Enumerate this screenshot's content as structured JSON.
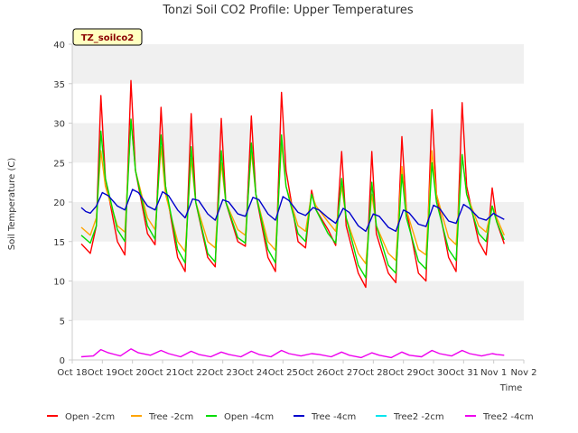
{
  "chart_data": {
    "type": "line",
    "title": "Tonzi Soil CO2 Profile: Upper Temperatures",
    "xlabel": "Time",
    "ylabel": "Soil Temperature (C)",
    "badge": "TZ_soilco2",
    "ylim": [
      0,
      40
    ],
    "yticks": [
      0,
      5,
      10,
      15,
      20,
      25,
      30,
      35,
      40
    ],
    "xlim": [
      18,
      33
    ],
    "xticks": [
      {
        "v": 18,
        "label": "Oct 18"
      },
      {
        "v": 19,
        "label": "Oct 19"
      },
      {
        "v": 20,
        "label": "Oct 20"
      },
      {
        "v": 21,
        "label": "Oct 21"
      },
      {
        "v": 22,
        "label": "Oct 22"
      },
      {
        "v": 23,
        "label": "Oct 23"
      },
      {
        "v": 24,
        "label": "Oct 24"
      },
      {
        "v": 25,
        "label": "Oct 25"
      },
      {
        "v": 26,
        "label": "Oct 26"
      },
      {
        "v": 27,
        "label": "Oct 27"
      },
      {
        "v": 28,
        "label": "Oct 28"
      },
      {
        "v": 29,
        "label": "Oct 29"
      },
      {
        "v": 30,
        "label": "Oct 30"
      },
      {
        "v": 31,
        "label": "Oct 31"
      },
      {
        "v": 32,
        "label": "Nov 1"
      },
      {
        "v": 33,
        "label": "Nov 2"
      }
    ],
    "grid": "horizontal bands",
    "legend_position": "bottom",
    "series": [
      {
        "name": "Open -2cm",
        "color": "#ff0000",
        "points": [
          [
            18.3,
            14.7
          ],
          [
            18.6,
            13.5
          ],
          [
            18.8,
            17.0
          ],
          [
            18.95,
            33.5
          ],
          [
            19.1,
            23.0
          ],
          [
            19.5,
            15.0
          ],
          [
            19.75,
            13.3
          ],
          [
            19.95,
            35.4
          ],
          [
            20.1,
            24.0
          ],
          [
            20.5,
            16.0
          ],
          [
            20.75,
            14.6
          ],
          [
            20.95,
            32.0
          ],
          [
            21.1,
            22.0
          ],
          [
            21.5,
            13.0
          ],
          [
            21.75,
            11.2
          ],
          [
            21.95,
            31.2
          ],
          [
            22.1,
            20.0
          ],
          [
            22.5,
            13.0
          ],
          [
            22.75,
            11.8
          ],
          [
            22.95,
            30.6
          ],
          [
            23.1,
            20.0
          ],
          [
            23.5,
            15.0
          ],
          [
            23.75,
            14.4
          ],
          [
            23.95,
            30.9
          ],
          [
            24.1,
            21.0
          ],
          [
            24.5,
            13.0
          ],
          [
            24.75,
            11.2
          ],
          [
            24.95,
            33.9
          ],
          [
            25.1,
            24.0
          ],
          [
            25.5,
            15.0
          ],
          [
            25.75,
            14.2
          ],
          [
            25.95,
            21.5
          ],
          [
            26.1,
            19.0
          ],
          [
            26.5,
            16.5
          ],
          [
            26.75,
            14.5
          ],
          [
            26.95,
            26.4
          ],
          [
            27.1,
            17.0
          ],
          [
            27.5,
            11.0
          ],
          [
            27.75,
            9.2
          ],
          [
            27.95,
            26.4
          ],
          [
            28.1,
            16.0
          ],
          [
            28.5,
            11.0
          ],
          [
            28.75,
            9.8
          ],
          [
            28.95,
            28.3
          ],
          [
            29.1,
            19.0
          ],
          [
            29.5,
            11.0
          ],
          [
            29.75,
            10.0
          ],
          [
            29.95,
            31.7
          ],
          [
            30.1,
            21.0
          ],
          [
            30.5,
            13.0
          ],
          [
            30.75,
            11.2
          ],
          [
            30.95,
            32.6
          ],
          [
            31.1,
            22.0
          ],
          [
            31.5,
            15.0
          ],
          [
            31.75,
            13.3
          ],
          [
            31.95,
            21.8
          ],
          [
            32.1,
            17.5
          ],
          [
            32.35,
            14.7
          ]
        ]
      },
      {
        "name": "Tree -2cm",
        "color": "#ffa500",
        "points": [
          [
            18.3,
            16.8
          ],
          [
            18.6,
            15.8
          ],
          [
            18.8,
            18.0
          ],
          [
            18.95,
            26.5
          ],
          [
            19.1,
            22.0
          ],
          [
            19.5,
            17.0
          ],
          [
            19.75,
            16.2
          ],
          [
            19.95,
            30.5
          ],
          [
            20.1,
            24.0
          ],
          [
            20.5,
            18.0
          ],
          [
            20.75,
            16.5
          ],
          [
            20.95,
            27.0
          ],
          [
            21.1,
            21.0
          ],
          [
            21.5,
            15.0
          ],
          [
            21.75,
            13.7
          ],
          [
            21.95,
            25.5
          ],
          [
            22.1,
            20.0
          ],
          [
            22.5,
            15.0
          ],
          [
            22.75,
            14.2
          ],
          [
            22.95,
            25.0
          ],
          [
            23.1,
            20.0
          ],
          [
            23.5,
            16.5
          ],
          [
            23.75,
            15.8
          ],
          [
            23.95,
            26.5
          ],
          [
            24.1,
            21.0
          ],
          [
            24.5,
            15.0
          ],
          [
            24.75,
            13.9
          ],
          [
            24.95,
            27.5
          ],
          [
            25.1,
            22.0
          ],
          [
            25.5,
            17.0
          ],
          [
            25.75,
            16.3
          ],
          [
            25.95,
            21.0
          ],
          [
            26.1,
            19.5
          ],
          [
            26.5,
            17.5
          ],
          [
            26.75,
            16.3
          ],
          [
            26.95,
            22.0
          ],
          [
            27.1,
            18.0
          ],
          [
            27.5,
            13.5
          ],
          [
            27.75,
            12.2
          ],
          [
            27.95,
            21.0
          ],
          [
            28.1,
            17.0
          ],
          [
            28.5,
            13.5
          ],
          [
            28.75,
            12.6
          ],
          [
            28.95,
            24.5
          ],
          [
            29.1,
            19.0
          ],
          [
            29.5,
            14.0
          ],
          [
            29.75,
            13.3
          ],
          [
            29.95,
            26.5
          ],
          [
            30.1,
            21.0
          ],
          [
            30.5,
            15.5
          ],
          [
            30.75,
            14.6
          ],
          [
            30.95,
            26.0
          ],
          [
            31.1,
            21.0
          ],
          [
            31.5,
            17.0
          ],
          [
            31.75,
            16.2
          ],
          [
            31.95,
            19.5
          ],
          [
            32.1,
            18.0
          ],
          [
            32.35,
            15.8
          ]
        ]
      },
      {
        "name": "Open -4cm",
        "color": "#00dd00",
        "points": [
          [
            18.3,
            15.8
          ],
          [
            18.6,
            14.8
          ],
          [
            18.8,
            17.0
          ],
          [
            18.95,
            29.0
          ],
          [
            19.1,
            23.0
          ],
          [
            19.5,
            16.5
          ],
          [
            19.75,
            15.0
          ],
          [
            19.95,
            30.5
          ],
          [
            20.1,
            24.0
          ],
          [
            20.5,
            17.0
          ],
          [
            20.75,
            15.3
          ],
          [
            20.95,
            28.5
          ],
          [
            21.1,
            22.0
          ],
          [
            21.5,
            14.0
          ],
          [
            21.75,
            12.3
          ],
          [
            21.95,
            27.0
          ],
          [
            22.1,
            20.0
          ],
          [
            22.5,
            13.5
          ],
          [
            22.75,
            12.4
          ],
          [
            22.95,
            26.5
          ],
          [
            23.1,
            20.0
          ],
          [
            23.5,
            15.5
          ],
          [
            23.75,
            14.8
          ],
          [
            23.95,
            27.5
          ],
          [
            24.1,
            21.0
          ],
          [
            24.5,
            14.0
          ],
          [
            24.75,
            12.3
          ],
          [
            24.95,
            28.5
          ],
          [
            25.1,
            22.0
          ],
          [
            25.5,
            16.0
          ],
          [
            25.75,
            15.0
          ],
          [
            25.95,
            21.0
          ],
          [
            26.1,
            19.0
          ],
          [
            26.5,
            16.0
          ],
          [
            26.75,
            14.8
          ],
          [
            26.95,
            23.0
          ],
          [
            27.1,
            18.0
          ],
          [
            27.5,
            12.0
          ],
          [
            27.75,
            10.4
          ],
          [
            27.95,
            22.5
          ],
          [
            28.1,
            17.0
          ],
          [
            28.5,
            12.0
          ],
          [
            28.75,
            11.0
          ],
          [
            28.95,
            23.5
          ],
          [
            29.1,
            18.0
          ],
          [
            29.5,
            12.5
          ],
          [
            29.75,
            11.5
          ],
          [
            29.95,
            25.0
          ],
          [
            30.1,
            20.0
          ],
          [
            30.5,
            14.0
          ],
          [
            30.75,
            12.6
          ],
          [
            30.95,
            26.0
          ],
          [
            31.1,
            21.0
          ],
          [
            31.5,
            16.0
          ],
          [
            31.75,
            15.0
          ],
          [
            31.95,
            19.5
          ],
          [
            32.1,
            17.5
          ],
          [
            32.35,
            15.2
          ]
        ]
      },
      {
        "name": "Tree -4cm",
        "color": "#0000cc",
        "points": [
          [
            18.3,
            19.3
          ],
          [
            18.45,
            18.8
          ],
          [
            18.6,
            18.6
          ],
          [
            18.8,
            19.5
          ],
          [
            19.0,
            21.2
          ],
          [
            19.2,
            20.8
          ],
          [
            19.5,
            19.5
          ],
          [
            19.75,
            19.0
          ],
          [
            20.0,
            21.6
          ],
          [
            20.2,
            21.2
          ],
          [
            20.5,
            19.5
          ],
          [
            20.75,
            19.0
          ],
          [
            21.0,
            21.3
          ],
          [
            21.2,
            20.8
          ],
          [
            21.5,
            19.0
          ],
          [
            21.75,
            18.0
          ],
          [
            22.0,
            20.4
          ],
          [
            22.2,
            20.2
          ],
          [
            22.5,
            18.5
          ],
          [
            22.75,
            17.7
          ],
          [
            23.0,
            20.3
          ],
          [
            23.2,
            20.0
          ],
          [
            23.5,
            18.5
          ],
          [
            23.75,
            18.2
          ],
          [
            24.0,
            20.6
          ],
          [
            24.2,
            20.3
          ],
          [
            24.5,
            18.5
          ],
          [
            24.75,
            17.7
          ],
          [
            25.0,
            20.7
          ],
          [
            25.2,
            20.2
          ],
          [
            25.5,
            18.7
          ],
          [
            25.75,
            18.3
          ],
          [
            26.0,
            19.3
          ],
          [
            26.2,
            19.0
          ],
          [
            26.5,
            18.0
          ],
          [
            26.75,
            17.3
          ],
          [
            27.0,
            19.2
          ],
          [
            27.2,
            18.7
          ],
          [
            27.5,
            17.0
          ],
          [
            27.75,
            16.3
          ],
          [
            28.0,
            18.5
          ],
          [
            28.2,
            18.2
          ],
          [
            28.5,
            16.8
          ],
          [
            28.75,
            16.3
          ],
          [
            29.0,
            19.0
          ],
          [
            29.2,
            18.6
          ],
          [
            29.5,
            17.2
          ],
          [
            29.75,
            16.9
          ],
          [
            30.0,
            19.6
          ],
          [
            30.2,
            19.2
          ],
          [
            30.5,
            17.6
          ],
          [
            30.75,
            17.3
          ],
          [
            31.0,
            19.7
          ],
          [
            31.2,
            19.2
          ],
          [
            31.5,
            18.0
          ],
          [
            31.75,
            17.7
          ],
          [
            32.0,
            18.6
          ],
          [
            32.1,
            18.3
          ],
          [
            32.35,
            17.8
          ]
        ]
      },
      {
        "name": "Tree2 -2cm",
        "color": "#00e5ee",
        "points": []
      },
      {
        "name": "Tree2 -4cm",
        "color": "#ee00ee",
        "points": [
          [
            18.3,
            0.4
          ],
          [
            18.7,
            0.5
          ],
          [
            18.95,
            1.3
          ],
          [
            19.2,
            0.9
          ],
          [
            19.6,
            0.5
          ],
          [
            19.95,
            1.4
          ],
          [
            20.2,
            0.9
          ],
          [
            20.6,
            0.6
          ],
          [
            20.95,
            1.2
          ],
          [
            21.2,
            0.8
          ],
          [
            21.6,
            0.4
          ],
          [
            21.95,
            1.1
          ],
          [
            22.2,
            0.7
          ],
          [
            22.6,
            0.4
          ],
          [
            22.95,
            1.0
          ],
          [
            23.2,
            0.7
          ],
          [
            23.6,
            0.4
          ],
          [
            23.95,
            1.1
          ],
          [
            24.2,
            0.7
          ],
          [
            24.6,
            0.4
          ],
          [
            24.95,
            1.2
          ],
          [
            25.2,
            0.8
          ],
          [
            25.6,
            0.5
          ],
          [
            25.95,
            0.8
          ],
          [
            26.2,
            0.7
          ],
          [
            26.6,
            0.4
          ],
          [
            26.95,
            1.0
          ],
          [
            27.2,
            0.6
          ],
          [
            27.6,
            0.3
          ],
          [
            27.95,
            0.9
          ],
          [
            28.2,
            0.6
          ],
          [
            28.6,
            0.3
          ],
          [
            28.95,
            1.0
          ],
          [
            29.2,
            0.6
          ],
          [
            29.6,
            0.4
          ],
          [
            29.95,
            1.2
          ],
          [
            30.2,
            0.8
          ],
          [
            30.6,
            0.5
          ],
          [
            30.95,
            1.2
          ],
          [
            31.2,
            0.8
          ],
          [
            31.6,
            0.5
          ],
          [
            31.95,
            0.8
          ],
          [
            32.1,
            0.7
          ],
          [
            32.35,
            0.6
          ]
        ]
      }
    ]
  }
}
